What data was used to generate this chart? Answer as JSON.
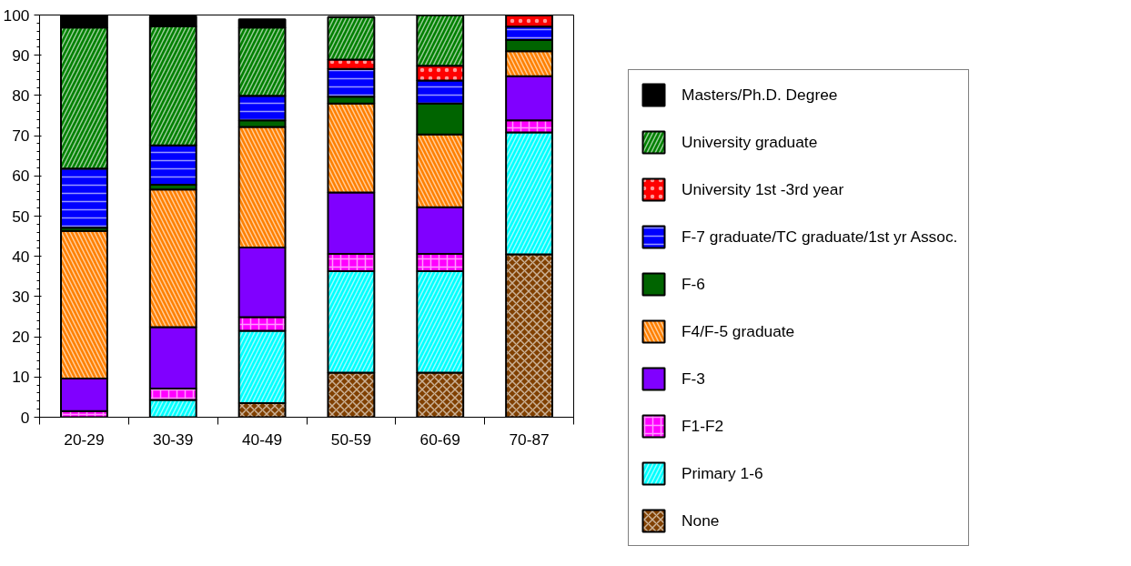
{
  "chart_data": {
    "type": "bar",
    "stacked": true,
    "categories": [
      "20-29",
      "30-39",
      "40-49",
      "50-59",
      "60-69",
      "70-87"
    ],
    "series": [
      {
        "name": "None",
        "color": "#804000",
        "values": [
          0,
          0,
          3.5,
          11.1,
          11.1,
          40.5
        ]
      },
      {
        "name": "Primary 1-6",
        "color": "#00ffff",
        "values": [
          0,
          4.3,
          18,
          25.2,
          25.2,
          30.3
        ]
      },
      {
        "name": "F1-F2",
        "color": "#ff00ff",
        "values": [
          1.5,
          2.8,
          3.4,
          4.3,
          4.3,
          3
        ]
      },
      {
        "name": "F-3",
        "color": "#8000ff",
        "values": [
          8.1,
          15.3,
          17.3,
          15.3,
          11.6,
          11
        ]
      },
      {
        "name": "F4/F-5 graduate",
        "color": "#ff8000",
        "values": [
          36.7,
          34.2,
          30,
          22.1,
          18.1,
          6.2
        ]
      },
      {
        "name": "F-6",
        "color": "#006400",
        "values": [
          0.8,
          1.2,
          1.6,
          1.7,
          7.7,
          2.8
        ]
      },
      {
        "name": "F-7 graduate/TC graduate/1st yr Assoc.",
        "color": "#0000ff",
        "values": [
          14.7,
          9.8,
          6.1,
          6.9,
          5.7,
          3.3
        ]
      },
      {
        "name": "University 1st -3rd year",
        "color": "#ff0000",
        "values": [
          0,
          0,
          0,
          2.3,
          3.7,
          2.9
        ]
      },
      {
        "name": "University graduate",
        "color": "#008000",
        "values": [
          35.1,
          29.6,
          17,
          10.6,
          12.6,
          0
        ]
      },
      {
        "name": "Masters/Ph.D. Degree",
        "color": "#000000",
        "values": [
          3.1,
          2.5,
          2,
          0,
          0,
          0
        ]
      }
    ],
    "ylim": [
      0,
      100
    ],
    "yticks": [
      0,
      10,
      20,
      30,
      40,
      50,
      60,
      70,
      80,
      90,
      100
    ],
    "grid": false,
    "legend": "right"
  }
}
